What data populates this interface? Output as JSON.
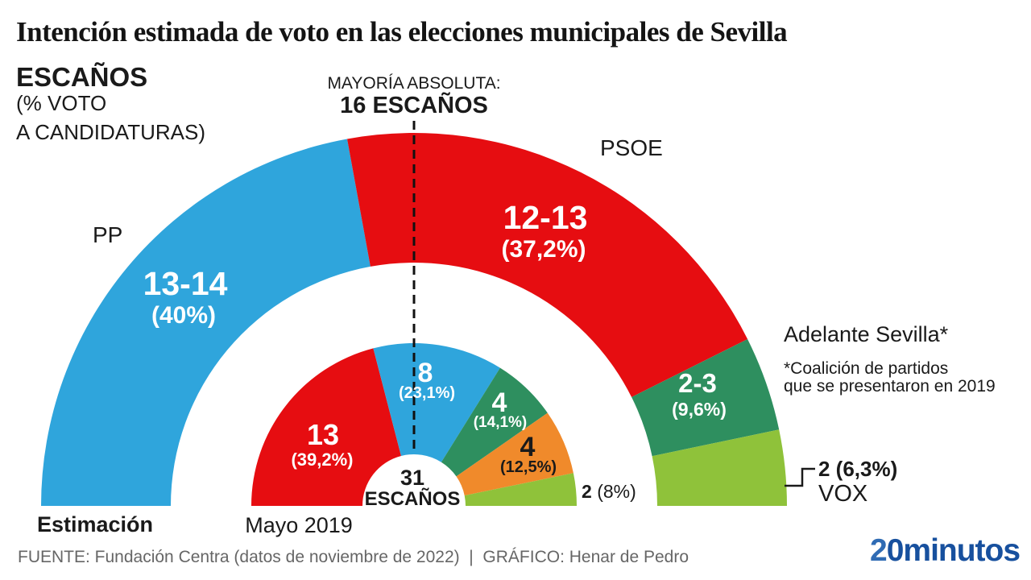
{
  "header": {
    "title": "Intención estimada de voto en las elecciones municipales de Sevilla",
    "unit_label": "ESCAÑOS",
    "unit_note_line1": "(% VOTO",
    "unit_note_line2": "A CANDIDATURAS)",
    "majority_label": "MAYORÍA ABSOLUTA:",
    "majority_value": "16 ESCAÑOS"
  },
  "center": {
    "value": "31",
    "label": "ESCAÑOS"
  },
  "row_labels": {
    "outer": "Estimación",
    "inner": "Mayo 2019"
  },
  "annotations": {
    "adelante_title": "Adelante Sevilla*",
    "adelante_note_line1": "*Coalición de partidos",
    "adelante_note_line2": "que se presentaron en 2019",
    "vox_value": "2 (6,3%)",
    "vox_label": "VOX"
  },
  "footer": {
    "credits": "FUENTE: Fundación Centra (datos de noviembre de 2022)  |  GRÁFICO: Henar de Pedro",
    "logo_part1": "2",
    "logo_part2": "0minutos"
  },
  "colors": {
    "pp_blue": "#2FA5DC",
    "psoe_red": "#E60D11",
    "adelante_green": "#2E8F5F",
    "vox_green": "#8FC23A",
    "ciudadanos_orange": "#F08A2B",
    "logo_blue_light": "#2F6BB4",
    "logo_blue_dark": "#17509E",
    "text_black": "#1a1a1a",
    "footer_gray": "#666666"
  },
  "chart_data": {
    "type": "semicircle_donut",
    "title": "Intención estimada de voto en las elecciones municipales de Sevilla",
    "unit": "ESCAÑOS (% VOTO A CANDIDATURAS)",
    "majority": {
      "label": "MAYORÍA ABSOLUTA:",
      "seats": 16
    },
    "total_seats": 31,
    "legend_position": "none",
    "rings": [
      {
        "name": "Estimación",
        "segments": [
          {
            "party": "PP",
            "seats_label": "13-14",
            "seats": 13.5,
            "pct_label": "(40%)",
            "pct": 40.0,
            "color": "#2FA5DC",
            "text_color": "#ffffff"
          },
          {
            "party": "PSOE",
            "seats_label": "12-13",
            "seats": 12.5,
            "pct_label": "(37,2%)",
            "pct": 37.2,
            "color": "#E60D11",
            "text_color": "#ffffff"
          },
          {
            "party": "Adelante Sevilla*",
            "seats_label": "2-3",
            "seats": 2.5,
            "pct_label": "(9,6%)",
            "pct": 9.6,
            "color": "#2E8F5F",
            "text_color": "#ffffff"
          },
          {
            "party": "VOX",
            "seats_label": "2",
            "seats": 2,
            "pct_label": "(6,3%)",
            "pct": 6.3,
            "color": "#8FC23A",
            "text_color": "#1a1a1a"
          }
        ]
      },
      {
        "name": "Mayo 2019",
        "segments": [
          {
            "seats_label": "13",
            "seats": 13,
            "pct_label": "(39,2%)",
            "pct": 39.2,
            "color": "#E60D11",
            "text_color": "#ffffff"
          },
          {
            "seats_label": "8",
            "seats": 8,
            "pct_label": "(23,1%)",
            "pct": 23.1,
            "color": "#2FA5DC",
            "text_color": "#ffffff"
          },
          {
            "seats_label": "4",
            "seats": 4,
            "pct_label": "(14,1%)",
            "pct": 14.1,
            "color": "#2E8F5F",
            "text_color": "#ffffff"
          },
          {
            "seats_label": "4",
            "seats": 4,
            "pct_label": "(12,5%)",
            "pct": 12.5,
            "color": "#F08A2B",
            "text_color": "#1a1a1a"
          },
          {
            "seats_label": "2",
            "seats": 2,
            "pct_label": "(8%)",
            "pct": 8.0,
            "color": "#8FC23A",
            "text_color": "#1a1a1a"
          }
        ]
      }
    ]
  }
}
